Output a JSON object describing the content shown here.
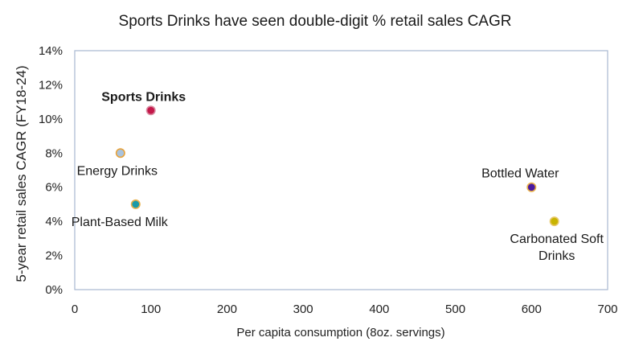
{
  "chart_data": {
    "type": "scatter",
    "title": "Sports Drinks have seen double-digit % retail sales CAGR",
    "xlabel": "Per capita consumption (8oz. servings)",
    "ylabel": "5-year retail sales CAGR (FY18-24)",
    "xlim": [
      0,
      700
    ],
    "ylim": [
      0,
      14
    ],
    "x_ticks": [
      "0",
      "100",
      "200",
      "300",
      "400",
      "500",
      "600",
      "700"
    ],
    "y_ticks": [
      "0%",
      "2%",
      "4%",
      "6%",
      "8%",
      "10%",
      "12%",
      "14%"
    ],
    "grid": false,
    "legend": "none",
    "points": [
      {
        "label": "Sports Drinks",
        "x": 100,
        "y": 10.5,
        "color": "#c4184a",
        "edge": "#d98aa0",
        "bold": true,
        "label_pos": "above"
      },
      {
        "label": "Energy Drinks",
        "x": 60,
        "y": 8.0,
        "color": "#a9c3de",
        "edge": "#e8a23a",
        "bold": false,
        "label_pos": "below"
      },
      {
        "label": "Plant-Based Milk",
        "x": 80,
        "y": 5.0,
        "color": "#1a9aa8",
        "edge": "#e8b04a",
        "bold": false,
        "label_pos": "below"
      },
      {
        "label": "Bottled Water",
        "x": 600,
        "y": 6.0,
        "color": "#4a1aa0",
        "edge": "#e8b04a",
        "bold": false,
        "label_pos": "above"
      },
      {
        "label": "Carbonated Soft Drinks",
        "label_lines": [
          "Carbonated Soft",
          "Drinks"
        ],
        "x": 630,
        "y": 4.0,
        "color": "#c8b400",
        "edge": "#e8c86a",
        "bold": false,
        "label_pos": "below"
      }
    ]
  }
}
